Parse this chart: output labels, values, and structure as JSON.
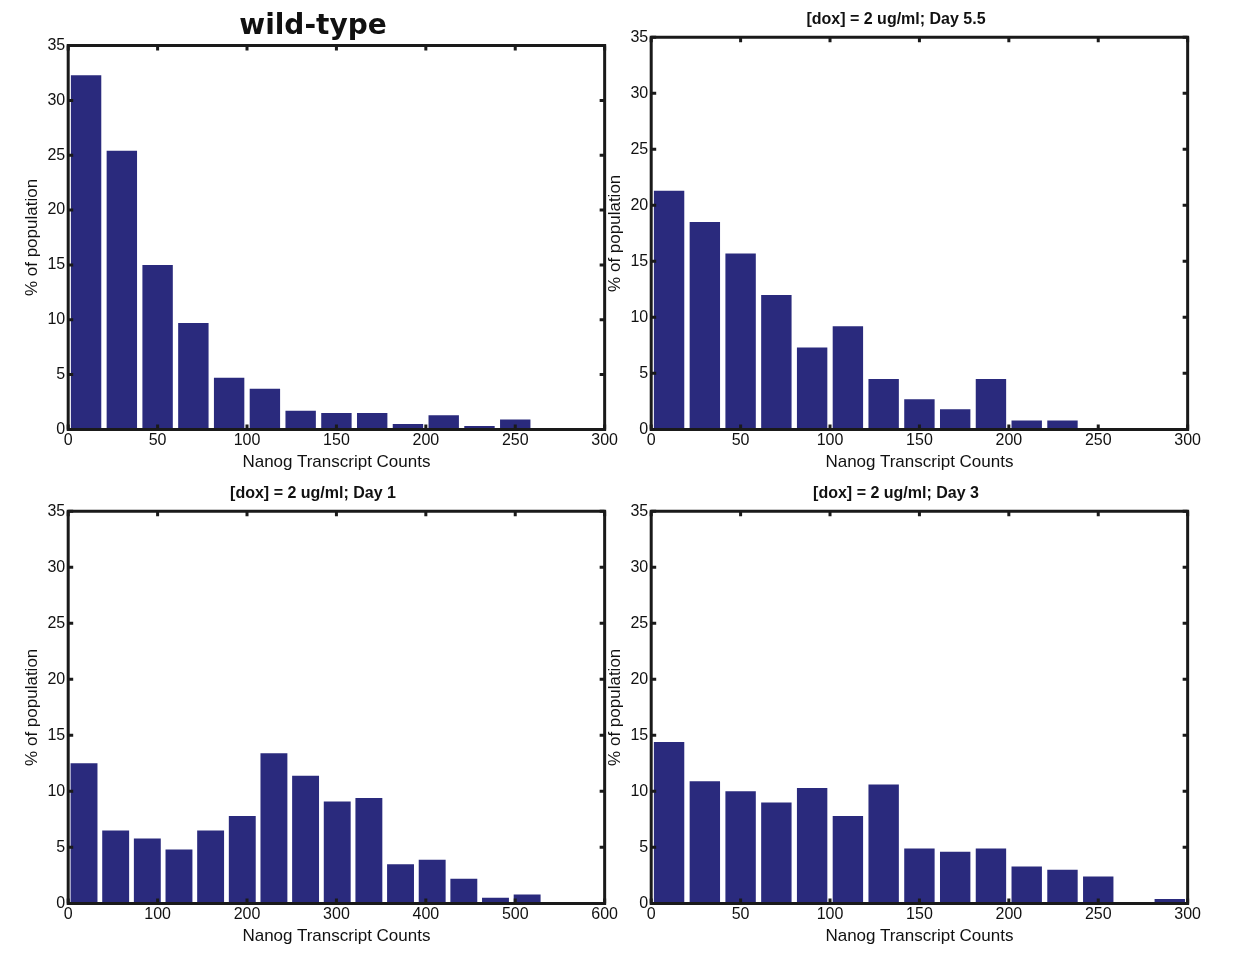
{
  "chart_data": [
    {
      "type": "bar",
      "title": "wild-type",
      "xlabel": "Nanog Transcript Counts",
      "ylabel": "% of population",
      "color": "#2a2a7d",
      "x": [
        10,
        30,
        50,
        70,
        90,
        110,
        130,
        150,
        170,
        190,
        210,
        230,
        250,
        270,
        290
      ],
      "values": [
        32.3,
        25.4,
        15.0,
        9.7,
        4.7,
        3.7,
        1.7,
        1.5,
        1.5,
        0.5,
        1.3,
        0.3,
        0.9,
        0.1,
        0.1
      ],
      "xlim": [
        0,
        300
      ],
      "xticks": [
        0,
        50,
        100,
        150,
        200,
        250,
        300
      ],
      "ylim": [
        0,
        35
      ],
      "yticks": [
        0,
        5,
        10,
        15,
        20,
        25,
        30,
        35
      ],
      "grid": false,
      "legend": false
    },
    {
      "type": "bar",
      "title": "[dox] = 2 ug/ml; Day 5.5",
      "xlabel": "Nanog Transcript Counts",
      "ylabel": "% of population",
      "color": "#2a2a7d",
      "x": [
        10,
        30,
        50,
        70,
        90,
        110,
        130,
        150,
        170,
        190,
        210,
        230,
        250,
        270,
        290
      ],
      "values": [
        21.3,
        18.5,
        15.7,
        12.0,
        7.3,
        9.2,
        4.5,
        2.7,
        1.8,
        4.5,
        0.8,
        0.8,
        0,
        0,
        0
      ],
      "xlim": [
        0,
        300
      ],
      "xticks": [
        0,
        50,
        100,
        150,
        200,
        250,
        300
      ],
      "ylim": [
        0,
        35
      ],
      "yticks": [
        0,
        5,
        10,
        15,
        20,
        25,
        30,
        35
      ],
      "grid": false,
      "legend": false
    },
    {
      "type": "bar",
      "title": "[dox] = 2 ug/ml; Day 1",
      "xlabel": "Nanog Transcript Counts",
      "ylabel": "% of population",
      "color": "#2a2a7d",
      "x": [
        17.7,
        53.1,
        88.5,
        123.9,
        159.3,
        194.7,
        230.1,
        265.5,
        300.9,
        336.3,
        371.7,
        407.1,
        442.5,
        477.9,
        513.3
      ],
      "values": [
        12.5,
        6.5,
        5.8,
        4.8,
        6.5,
        7.8,
        13.4,
        11.4,
        9.1,
        9.4,
        3.5,
        3.9,
        2.2,
        0.5,
        0.8
      ],
      "xlim": [
        0,
        600
      ],
      "xticks": [
        0,
        100,
        200,
        300,
        400,
        500,
        600
      ],
      "ylim": [
        0,
        35
      ],
      "yticks": [
        0,
        5,
        10,
        15,
        20,
        25,
        30,
        35
      ],
      "grid": false,
      "legend": false
    },
    {
      "type": "bar",
      "title": "[dox] = 2 ug/ml; Day 3",
      "xlabel": "Nanog Transcript Counts",
      "ylabel": "% of population",
      "color": "#2a2a7d",
      "x": [
        10,
        30,
        50,
        70,
        90,
        110,
        130,
        150,
        170,
        190,
        210,
        230,
        250,
        270,
        290
      ],
      "values": [
        14.4,
        10.9,
        10.0,
        9.0,
        10.3,
        7.8,
        10.6,
        4.9,
        4.6,
        4.9,
        3.3,
        3.0,
        2.4,
        0,
        0.4
      ],
      "xlim": [
        0,
        300
      ],
      "xticks": [
        0,
        50,
        100,
        150,
        200,
        250,
        300
      ],
      "ylim": [
        0,
        35
      ],
      "yticks": [
        0,
        5,
        10,
        15,
        20,
        25,
        30,
        35
      ],
      "grid": false,
      "legend": false
    }
  ]
}
